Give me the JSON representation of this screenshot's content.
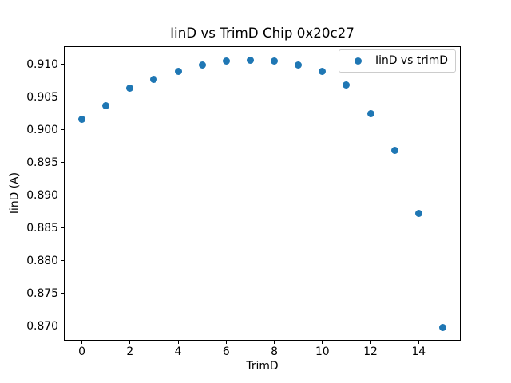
{
  "chart_data": {
    "type": "scatter",
    "title": "IinD vs TrimD Chip 0x20c27",
    "xlabel": "TrimD",
    "ylabel": "IinD (A)",
    "legend": {
      "label": "IinD vs trimD",
      "position": "upper right"
    },
    "x": [
      0,
      1,
      2,
      3,
      4,
      5,
      6,
      7,
      8,
      9,
      10,
      11,
      12,
      13,
      14,
      15
    ],
    "y": [
      0.9016,
      0.9037,
      0.9064,
      0.9077,
      0.909,
      0.9099,
      0.9105,
      0.9107,
      0.9105,
      0.9099,
      0.909,
      0.9069,
      0.9025,
      0.8969,
      0.8873,
      0.8698
    ],
    "xlim": [
      -0.75,
      15.75
    ],
    "ylim": [
      0.8678,
      0.9128
    ],
    "xtick_values": [
      0,
      2,
      4,
      6,
      8,
      10,
      12,
      14
    ],
    "xtick_labels": [
      "0",
      "2",
      "4",
      "6",
      "8",
      "10",
      "12",
      "14"
    ],
    "ytick_values": [
      0.87,
      0.875,
      0.88,
      0.885,
      0.89,
      0.895,
      0.9,
      0.905,
      0.91
    ],
    "ytick_labels": [
      "0.870",
      "0.875",
      "0.880",
      "0.885",
      "0.890",
      "0.895",
      "0.900",
      "0.905",
      "0.910"
    ],
    "grid": false,
    "colors": {
      "marker": "#1f77b4",
      "spine": "#000000",
      "text": "#000000",
      "legend_border": "#cccccc",
      "background": "#ffffff"
    }
  }
}
